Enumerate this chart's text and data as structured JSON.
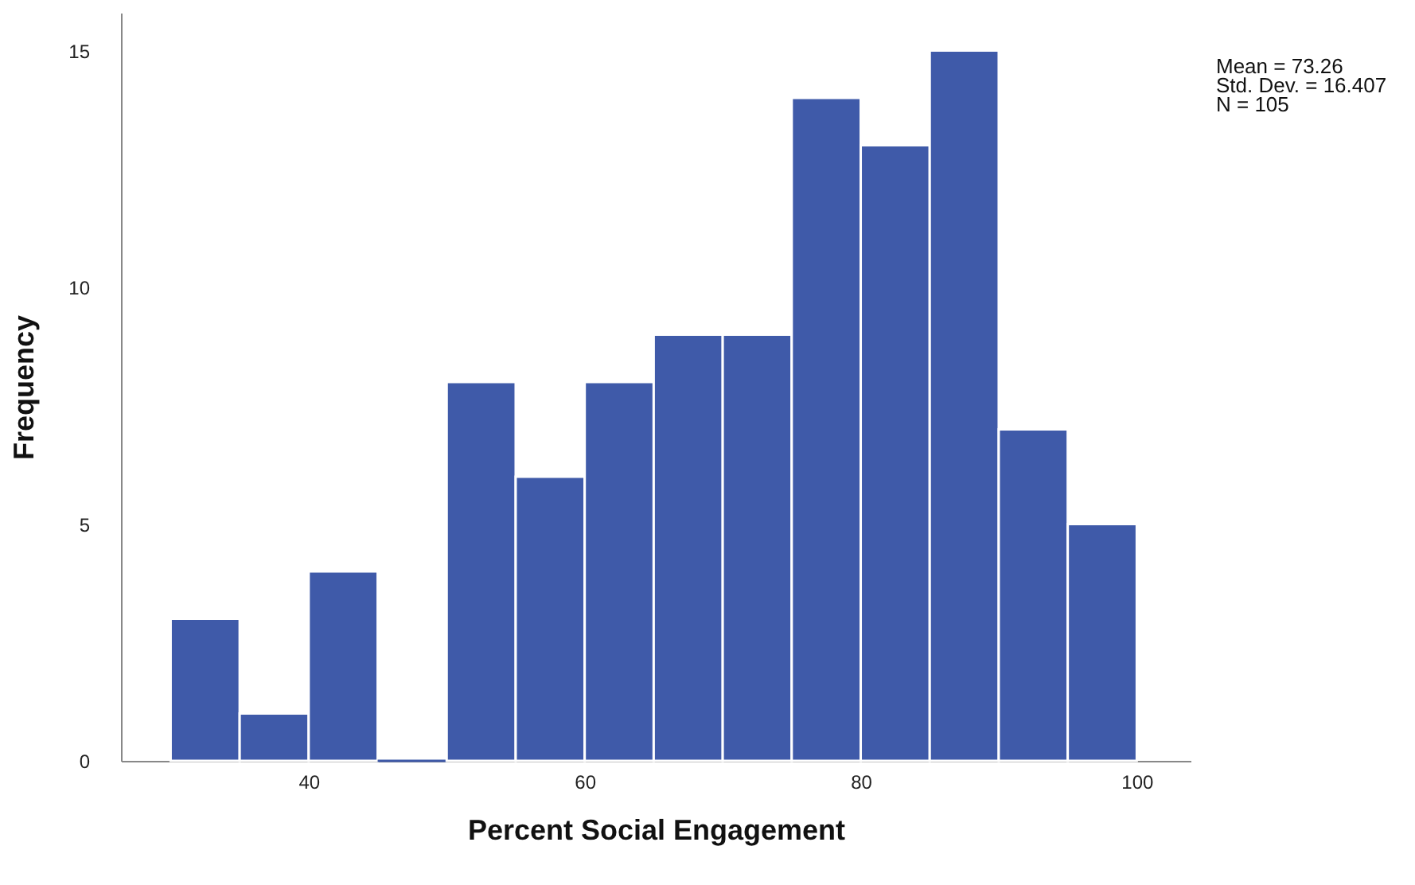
{
  "chart_data": {
    "type": "histogram",
    "xlabel": "Percent Social Engagement",
    "ylabel": "Frequency",
    "bins": [
      30,
      35,
      40,
      45,
      50,
      55,
      60,
      65,
      70,
      75,
      80,
      85,
      90,
      95,
      100
    ],
    "values": [
      3,
      1,
      4,
      0,
      8,
      6,
      8,
      9,
      9,
      14,
      13,
      15,
      7,
      5
    ],
    "color": "#3f5aa9",
    "xlim": [
      26.4,
      103.9
    ],
    "xticks": [
      40,
      60,
      80,
      100
    ],
    "ylim": [
      0,
      15.8
    ],
    "yticks": [
      0,
      5,
      10,
      15
    ],
    "grid": false,
    "annotations": [
      "Mean = 73.26",
      "Std. Dev. = 16.407",
      "N = 105"
    ]
  }
}
